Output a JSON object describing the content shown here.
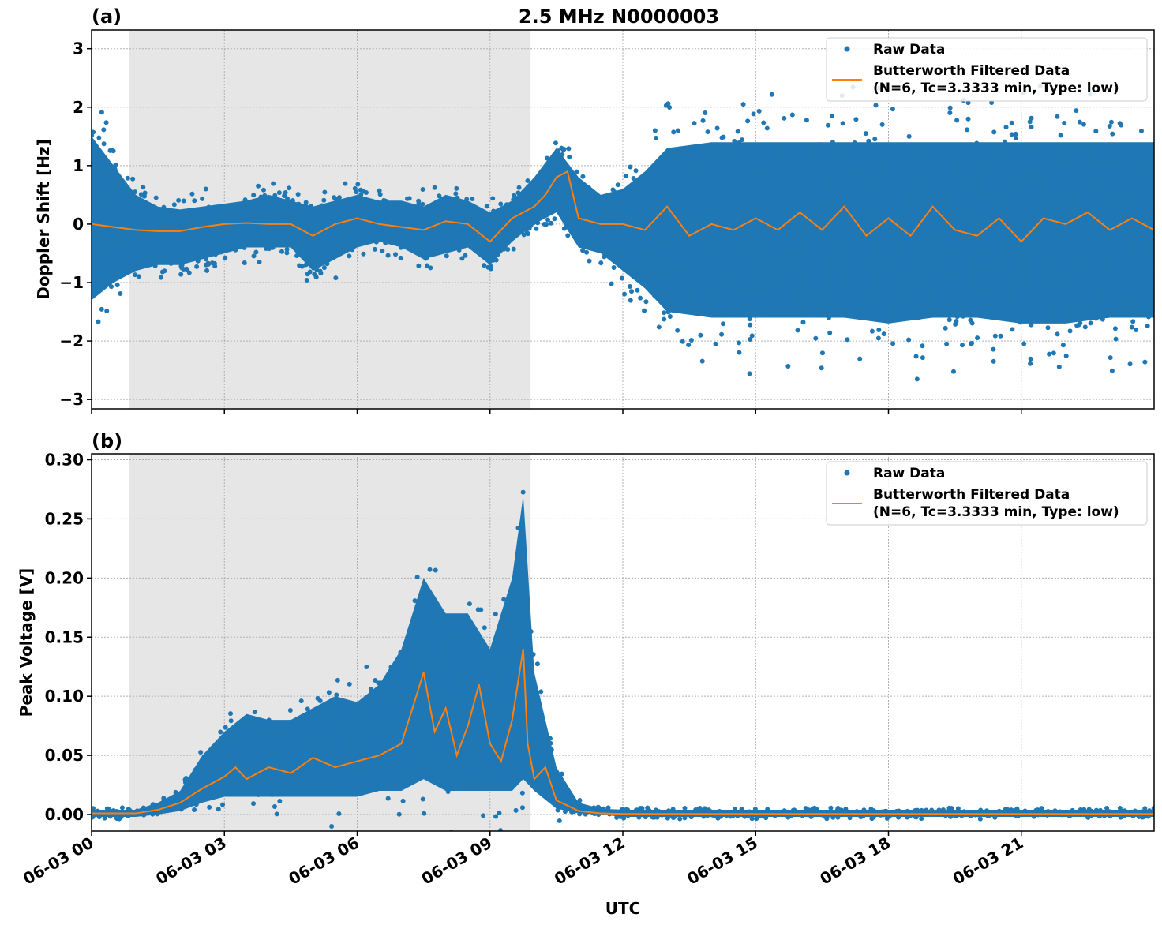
{
  "title": "2.5 MHz N0000003",
  "xlabel": "UTC",
  "x_tick_labels": [
    "06-03 00",
    "06-03 03",
    "06-03 06",
    "06-03 09",
    "06-03 12",
    "06-03 15",
    "06-03 18",
    "06-03 21"
  ],
  "chart_data": [
    {
      "type": "scatter",
      "panel_label": "(a)",
      "ylabel": "Doppler Shift [Hz]",
      "xlim_hours": [
        0,
        24
      ],
      "ylim": [
        -3.16,
        3.32
      ],
      "yticks": [
        3,
        2,
        1,
        0,
        -1,
        -2,
        -3
      ],
      "ytick_labels": [
        "3",
        "2",
        "1",
        "0",
        "−1",
        "−2",
        "−3"
      ],
      "grid": true,
      "legend_position": "top-right",
      "shaded_interval_utc": [
        "00:51",
        "09:55"
      ],
      "series": [
        {
          "name": "Raw Data",
          "color": "#1f77b4",
          "t_hours": [
            0,
            0.5,
            1,
            1.5,
            2,
            2.5,
            3,
            3.5,
            4,
            4.5,
            5,
            5.5,
            6,
            6.5,
            7,
            7.5,
            8,
            8.5,
            9,
            9.5,
            10,
            10.5,
            11,
            11.5,
            12,
            12.5,
            13,
            14,
            15,
            16,
            17,
            18,
            19,
            20,
            21,
            22,
            23,
            24
          ],
          "low": [
            -1.3,
            -1.0,
            -0.8,
            -0.7,
            -0.7,
            -0.6,
            -0.5,
            -0.4,
            -0.4,
            -0.4,
            -0.8,
            -0.6,
            -0.4,
            -0.3,
            -0.4,
            -0.6,
            -0.5,
            -0.4,
            -0.7,
            -0.3,
            0.0,
            0.2,
            -0.4,
            -0.5,
            -0.8,
            -1.1,
            -1.5,
            -1.6,
            -1.6,
            -1.6,
            -1.6,
            -1.7,
            -1.6,
            -1.6,
            -1.7,
            -1.7,
            -1.6,
            -1.6
          ],
          "high": [
            1.5,
            1.0,
            0.5,
            0.3,
            0.25,
            0.3,
            0.35,
            0.4,
            0.5,
            0.4,
            0.3,
            0.4,
            0.5,
            0.4,
            0.4,
            0.3,
            0.5,
            0.4,
            0.2,
            0.4,
            0.8,
            1.3,
            0.8,
            0.5,
            0.6,
            0.9,
            1.3,
            1.4,
            1.4,
            1.4,
            1.4,
            1.4,
            1.4,
            1.4,
            1.4,
            1.4,
            1.4,
            1.4
          ]
        },
        {
          "name": "Butterworth Filtered Data",
          "name_line2": "(N=6, Tc=3.3333 min, Type: low)",
          "color": "#ff7f0e",
          "t_hours": [
            0,
            0.5,
            1,
            1.5,
            2,
            2.5,
            3,
            3.5,
            4,
            4.5,
            5,
            5.5,
            6,
            6.5,
            7,
            7.5,
            8,
            8.5,
            9,
            9.5,
            10,
            10.25,
            10.5,
            10.75,
            11,
            11.5,
            12,
            12.5,
            13,
            13.5,
            14,
            14.5,
            15,
            15.5,
            16,
            16.5,
            17,
            17.5,
            18,
            18.5,
            19,
            19.5,
            20,
            20.5,
            21,
            21.5,
            22,
            22.5,
            23,
            23.5,
            24
          ],
          "values": [
            0,
            -0.05,
            -0.1,
            -0.12,
            -0.12,
            -0.05,
            0,
            0.02,
            0,
            0,
            -0.2,
            0,
            0.1,
            0,
            -0.05,
            -0.1,
            0.05,
            0,
            -0.3,
            0.1,
            0.3,
            0.5,
            0.8,
            0.9,
            0.1,
            0,
            0,
            -0.1,
            0.3,
            -0.2,
            0,
            -0.1,
            0.1,
            -0.1,
            0.2,
            -0.1,
            0.3,
            -0.2,
            0.1,
            -0.2,
            0.3,
            -0.1,
            -0.2,
            0.1,
            -0.3,
            0.1,
            0,
            0.2,
            -0.1,
            0.1,
            -0.1
          ]
        }
      ]
    },
    {
      "type": "scatter",
      "panel_label": "(b)",
      "ylabel": "Peak Voltage [V]",
      "xlim_hours": [
        0,
        24
      ],
      "ylim": [
        -0.014,
        0.305
      ],
      "yticks": [
        0.3,
        0.25,
        0.2,
        0.15,
        0.1,
        0.05,
        0.0
      ],
      "ytick_labels": [
        "0.30",
        "0.25",
        "0.20",
        "0.15",
        "0.10",
        "0.05",
        "0.00"
      ],
      "grid": true,
      "legend_position": "top-right",
      "shaded_interval_utc": [
        "00:51",
        "09:55"
      ],
      "series": [
        {
          "name": "Raw Data",
          "color": "#1f77b4",
          "t_hours": [
            0,
            0.5,
            1,
            1.5,
            2,
            2.5,
            3,
            3.5,
            4,
            4.5,
            5,
            5.5,
            6,
            6.5,
            7,
            7.5,
            8,
            8.5,
            9,
            9.5,
            9.75,
            10,
            10.5,
            11,
            11.5,
            12,
            15,
            18,
            21,
            24
          ],
          "low": [
            -0.002,
            -0.002,
            -0.002,
            0,
            0.003,
            0.01,
            0.015,
            0.015,
            0.015,
            0.015,
            0.015,
            0.015,
            0.015,
            0.02,
            0.02,
            0.03,
            0.02,
            0.02,
            0.02,
            0.02,
            0.03,
            0.02,
            0.005,
            0.001,
            0,
            -0.002,
            -0.002,
            -0.002,
            -0.002,
            -0.002
          ],
          "high": [
            0.004,
            0.004,
            0.004,
            0.01,
            0.02,
            0.05,
            0.07,
            0.085,
            0.08,
            0.08,
            0.09,
            0.1,
            0.095,
            0.11,
            0.14,
            0.2,
            0.17,
            0.17,
            0.14,
            0.2,
            0.27,
            0.12,
            0.04,
            0.01,
            0.005,
            0.004,
            0.004,
            0.004,
            0.004,
            0.004
          ]
        },
        {
          "name": "Butterworth Filtered Data",
          "name_line2": "(N=6, Tc=3.3333 min, Type: low)",
          "color": "#ff7f0e",
          "t_hours": [
            0,
            0.5,
            1,
            1.5,
            2,
            2.5,
            3,
            3.25,
            3.5,
            4,
            4.5,
            5,
            5.5,
            6,
            6.5,
            7,
            7.25,
            7.5,
            7.75,
            8,
            8.25,
            8.5,
            8.75,
            9,
            9.25,
            9.5,
            9.75,
            9.85,
            10,
            10.25,
            10.5,
            11,
            11.5,
            12,
            15,
            18,
            21,
            24
          ],
          "values": [
            0.001,
            0.001,
            0.001,
            0.004,
            0.01,
            0.022,
            0.032,
            0.04,
            0.03,
            0.04,
            0.035,
            0.048,
            0.04,
            0.045,
            0.05,
            0.06,
            0.09,
            0.12,
            0.07,
            0.09,
            0.05,
            0.075,
            0.11,
            0.06,
            0.045,
            0.08,
            0.14,
            0.06,
            0.03,
            0.04,
            0.012,
            0.003,
            0.001,
            0.0005,
            0.0005,
            0.0005,
            0.0005,
            0.0005
          ]
        }
      ]
    }
  ]
}
